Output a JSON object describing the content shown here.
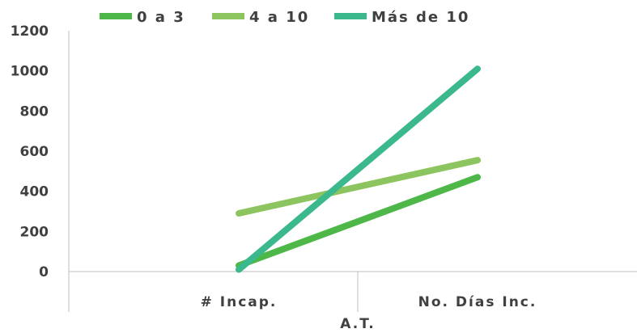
{
  "chart_data": {
    "type": "line",
    "categories": [
      "# Incap.",
      "No. Días Inc."
    ],
    "group_label": "A.T.",
    "series": [
      {
        "name": "0 a 3",
        "values": [
          30,
          470
        ],
        "color": "#4db848"
      },
      {
        "name": "4 a 10",
        "values": [
          290,
          555
        ],
        "color": "#8cc560"
      },
      {
        "name": "Más de 10",
        "values": [
          10,
          1010
        ],
        "color": "#3bb98d"
      }
    ],
    "yticks": [
      "0",
      "200",
      "400",
      "600",
      "800",
      "1000",
      "1200"
    ],
    "ylim": [
      0,
      1200
    ],
    "grid": false,
    "legend_position": "top"
  }
}
